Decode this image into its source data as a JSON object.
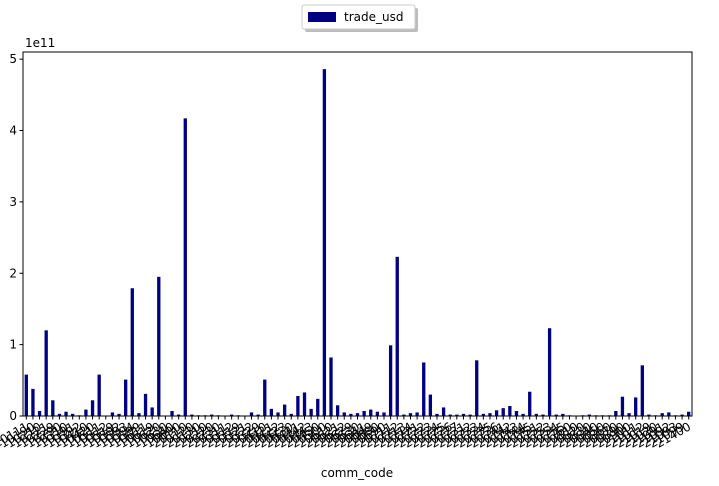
{
  "chart_data": {
    "type": "bar",
    "xlabel": "comm_code",
    "ylabel": "",
    "exponent_label": "1e11",
    "ylim": [
      0,
      5.1
    ],
    "yticks": [
      0,
      1,
      2,
      3,
      4,
      5
    ],
    "grid": false,
    "legend_position": "top-center",
    "series": [
      {
        "name": "trade_usd",
        "color": "#000080",
        "values": [
          0.58,
          0.38,
          0.07,
          1.2,
          0.22,
          0.03,
          0.06,
          0.03,
          0.01,
          0.09,
          0.22,
          0.58,
          0.0,
          0.05,
          0.03,
          0.51,
          1.79,
          0.04,
          0.31,
          0.12,
          1.95,
          0.0,
          0.07,
          0.02,
          4.17,
          0.02,
          0.01,
          0.01,
          0.02,
          0.01,
          0.0,
          0.02,
          0.01,
          0.0,
          0.05,
          0.02,
          0.51,
          0.1,
          0.05,
          0.16,
          0.03,
          0.28,
          0.33,
          0.1,
          0.24,
          4.86,
          0.82,
          0.15,
          0.05,
          0.03,
          0.04,
          0.07,
          0.09,
          0.06,
          0.05,
          0.99,
          2.23,
          0.02,
          0.04,
          0.05,
          0.75,
          0.3,
          0.03,
          0.12,
          0.02,
          0.02,
          0.03,
          0.02,
          0.78,
          0.03,
          0.04,
          0.08,
          0.11,
          0.14,
          0.07,
          0.03,
          0.34,
          0.03,
          0.02,
          1.23,
          0.02,
          0.03,
          0.01,
          0.0,
          0.01,
          0.02,
          0.01,
          0.01,
          0.01,
          0.07,
          0.27,
          0.04,
          0.26,
          0.71,
          0.02,
          0.01,
          0.04,
          0.05,
          0.01,
          0.02,
          0.06
        ]
      }
    ],
    "categories": [
      "10111",
      "10190",
      "10210",
      "10221",
      "10229",
      "10290",
      "10310",
      "10391",
      "10392",
      "10410",
      "10420",
      "10511",
      "10512",
      "10519",
      "10592",
      "10593",
      "10594",
      "10599",
      "10611",
      "10619",
      "10620",
      "10630",
      "10640",
      "10690",
      "20110",
      "20120",
      "20130",
      "20210",
      "20220",
      "20230",
      "20311",
      "20312",
      "20319",
      "20321",
      "20322",
      "20329",
      "20410",
      "20421",
      "20422",
      "20423",
      "20430",
      "20441",
      "20442",
      "20443",
      "20450",
      "20500",
      "20610",
      "20621",
      "20622",
      "20629",
      "20630",
      "20641",
      "20649",
      "20680",
      "20690",
      "20711",
      "20712",
      "20713",
      "20714",
      "20721",
      "20722",
      "20723",
      "20724",
      "20725",
      "20726",
      "20727",
      "20731",
      "20732",
      "20733",
      "20734",
      "20735",
      "20736",
      "20741",
      "20742",
      "20743",
      "20744",
      "20745",
      "20751",
      "20752",
      "20753",
      "20754",
      "20755",
      "20760",
      "20810",
      "20820",
      "20830",
      "20840",
      "20850",
      "20860",
      "20870",
      "20890",
      "20900",
      "21011",
      "21012",
      "21019",
      "21020",
      "21091",
      "21092",
      "21093",
      "21099",
      "21400"
    ]
  }
}
